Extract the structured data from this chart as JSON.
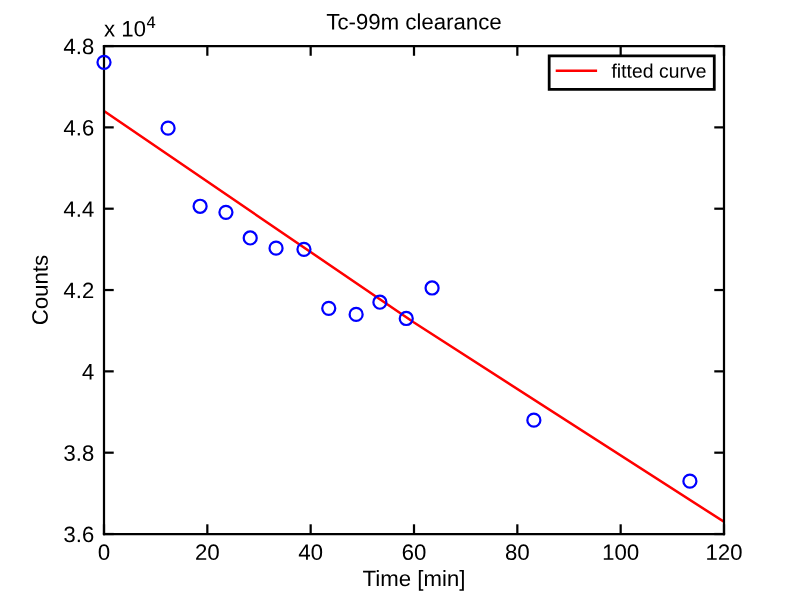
{
  "chart_data": {
    "type": "scatter",
    "title": "Tc-99m clearance",
    "xlabel": "Time [min]",
    "ylabel": "Counts",
    "annotations": [
      "x 10$^{4}$"
    ],
    "series": [
      {
        "color": "#0000ff",
        "marker": "circle",
        "x": [
          0,
          12.4,
          18.6,
          23.6,
          28.3,
          33.3,
          38.7,
          43.5,
          48.8,
          53.4,
          58.5,
          63.5,
          83.2,
          113.4
        ],
        "values": [
          4.76,
          4.598,
          4.406,
          4.391,
          4.328,
          4.303,
          4.3,
          4.155,
          4.14,
          4.17,
          4.13,
          4.205,
          3.88,
          3.73
        ]
      },
      {
        "type": "line",
        "name": "fitted curve",
        "color": "#ff0000",
        "marker": "none",
        "x": [
          0,
          60,
          120
        ],
        "values": [
          4.64,
          4.12,
          3.63
        ]
      }
    ],
    "xlim": [
      0,
      120
    ],
    "xticks": [
      0,
      20,
      40,
      60,
      80,
      100,
      120
    ],
    "ylim": [
      3.6,
      4.8
    ],
    "yticks": [
      3.6,
      3.8,
      4,
      4.2,
      4.4,
      4.6,
      4.8
    ],
    "legend": "top right",
    "grid": false
  }
}
